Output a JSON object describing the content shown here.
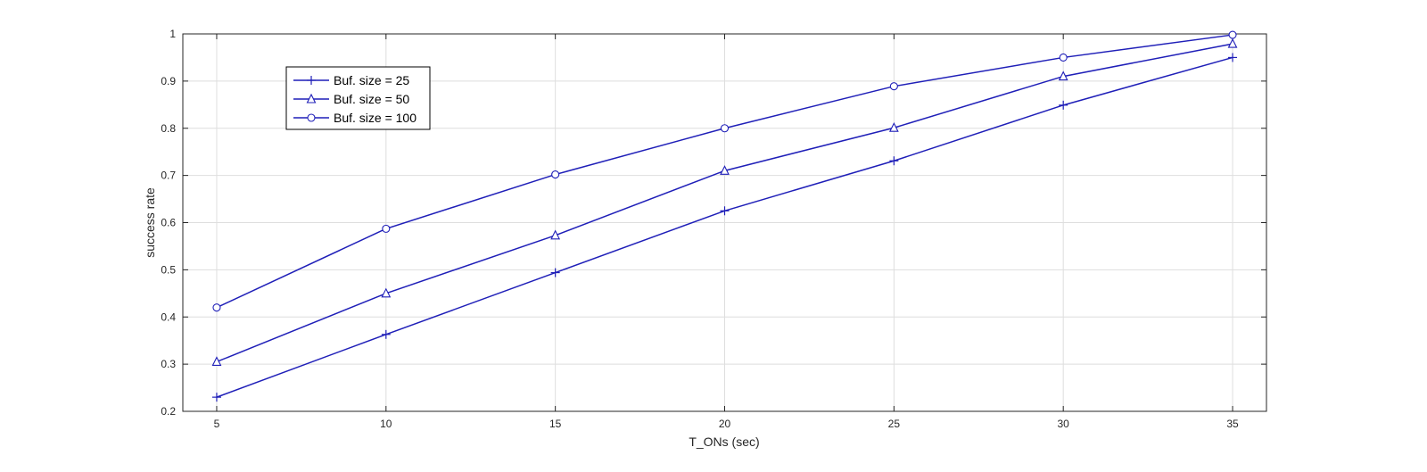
{
  "chart_data": {
    "type": "line",
    "title": "",
    "xlabel": "T_ONs (sec)",
    "ylabel": "success rate",
    "x": [
      5,
      10,
      15,
      20,
      25,
      30,
      35
    ],
    "xlim": [
      4,
      36
    ],
    "ylim": [
      0.2,
      1
    ],
    "xticks": [
      "5",
      "10",
      "15",
      "20",
      "25",
      "30",
      "35"
    ],
    "yticks": [
      "0.2",
      "0.3",
      "0.4",
      "0.5",
      "0.6",
      "0.7",
      "0.8",
      "0.9",
      "1"
    ],
    "grid": true,
    "legend_position": "top-left",
    "line_color": "#1f1fb8",
    "series": [
      {
        "name": "Buf. size = 25",
        "marker": "plus",
        "values": [
          0.23,
          0.363,
          0.494,
          0.625,
          0.731,
          0.849,
          0.95
        ]
      },
      {
        "name": "Buf. size = 50",
        "marker": "triangle",
        "values": [
          0.305,
          0.45,
          0.573,
          0.71,
          0.801,
          0.91,
          0.979
        ]
      },
      {
        "name": "Buf. size = 100",
        "marker": "circle",
        "values": [
          0.42,
          0.587,
          0.702,
          0.8,
          0.889,
          0.95,
          0.998
        ]
      }
    ]
  }
}
